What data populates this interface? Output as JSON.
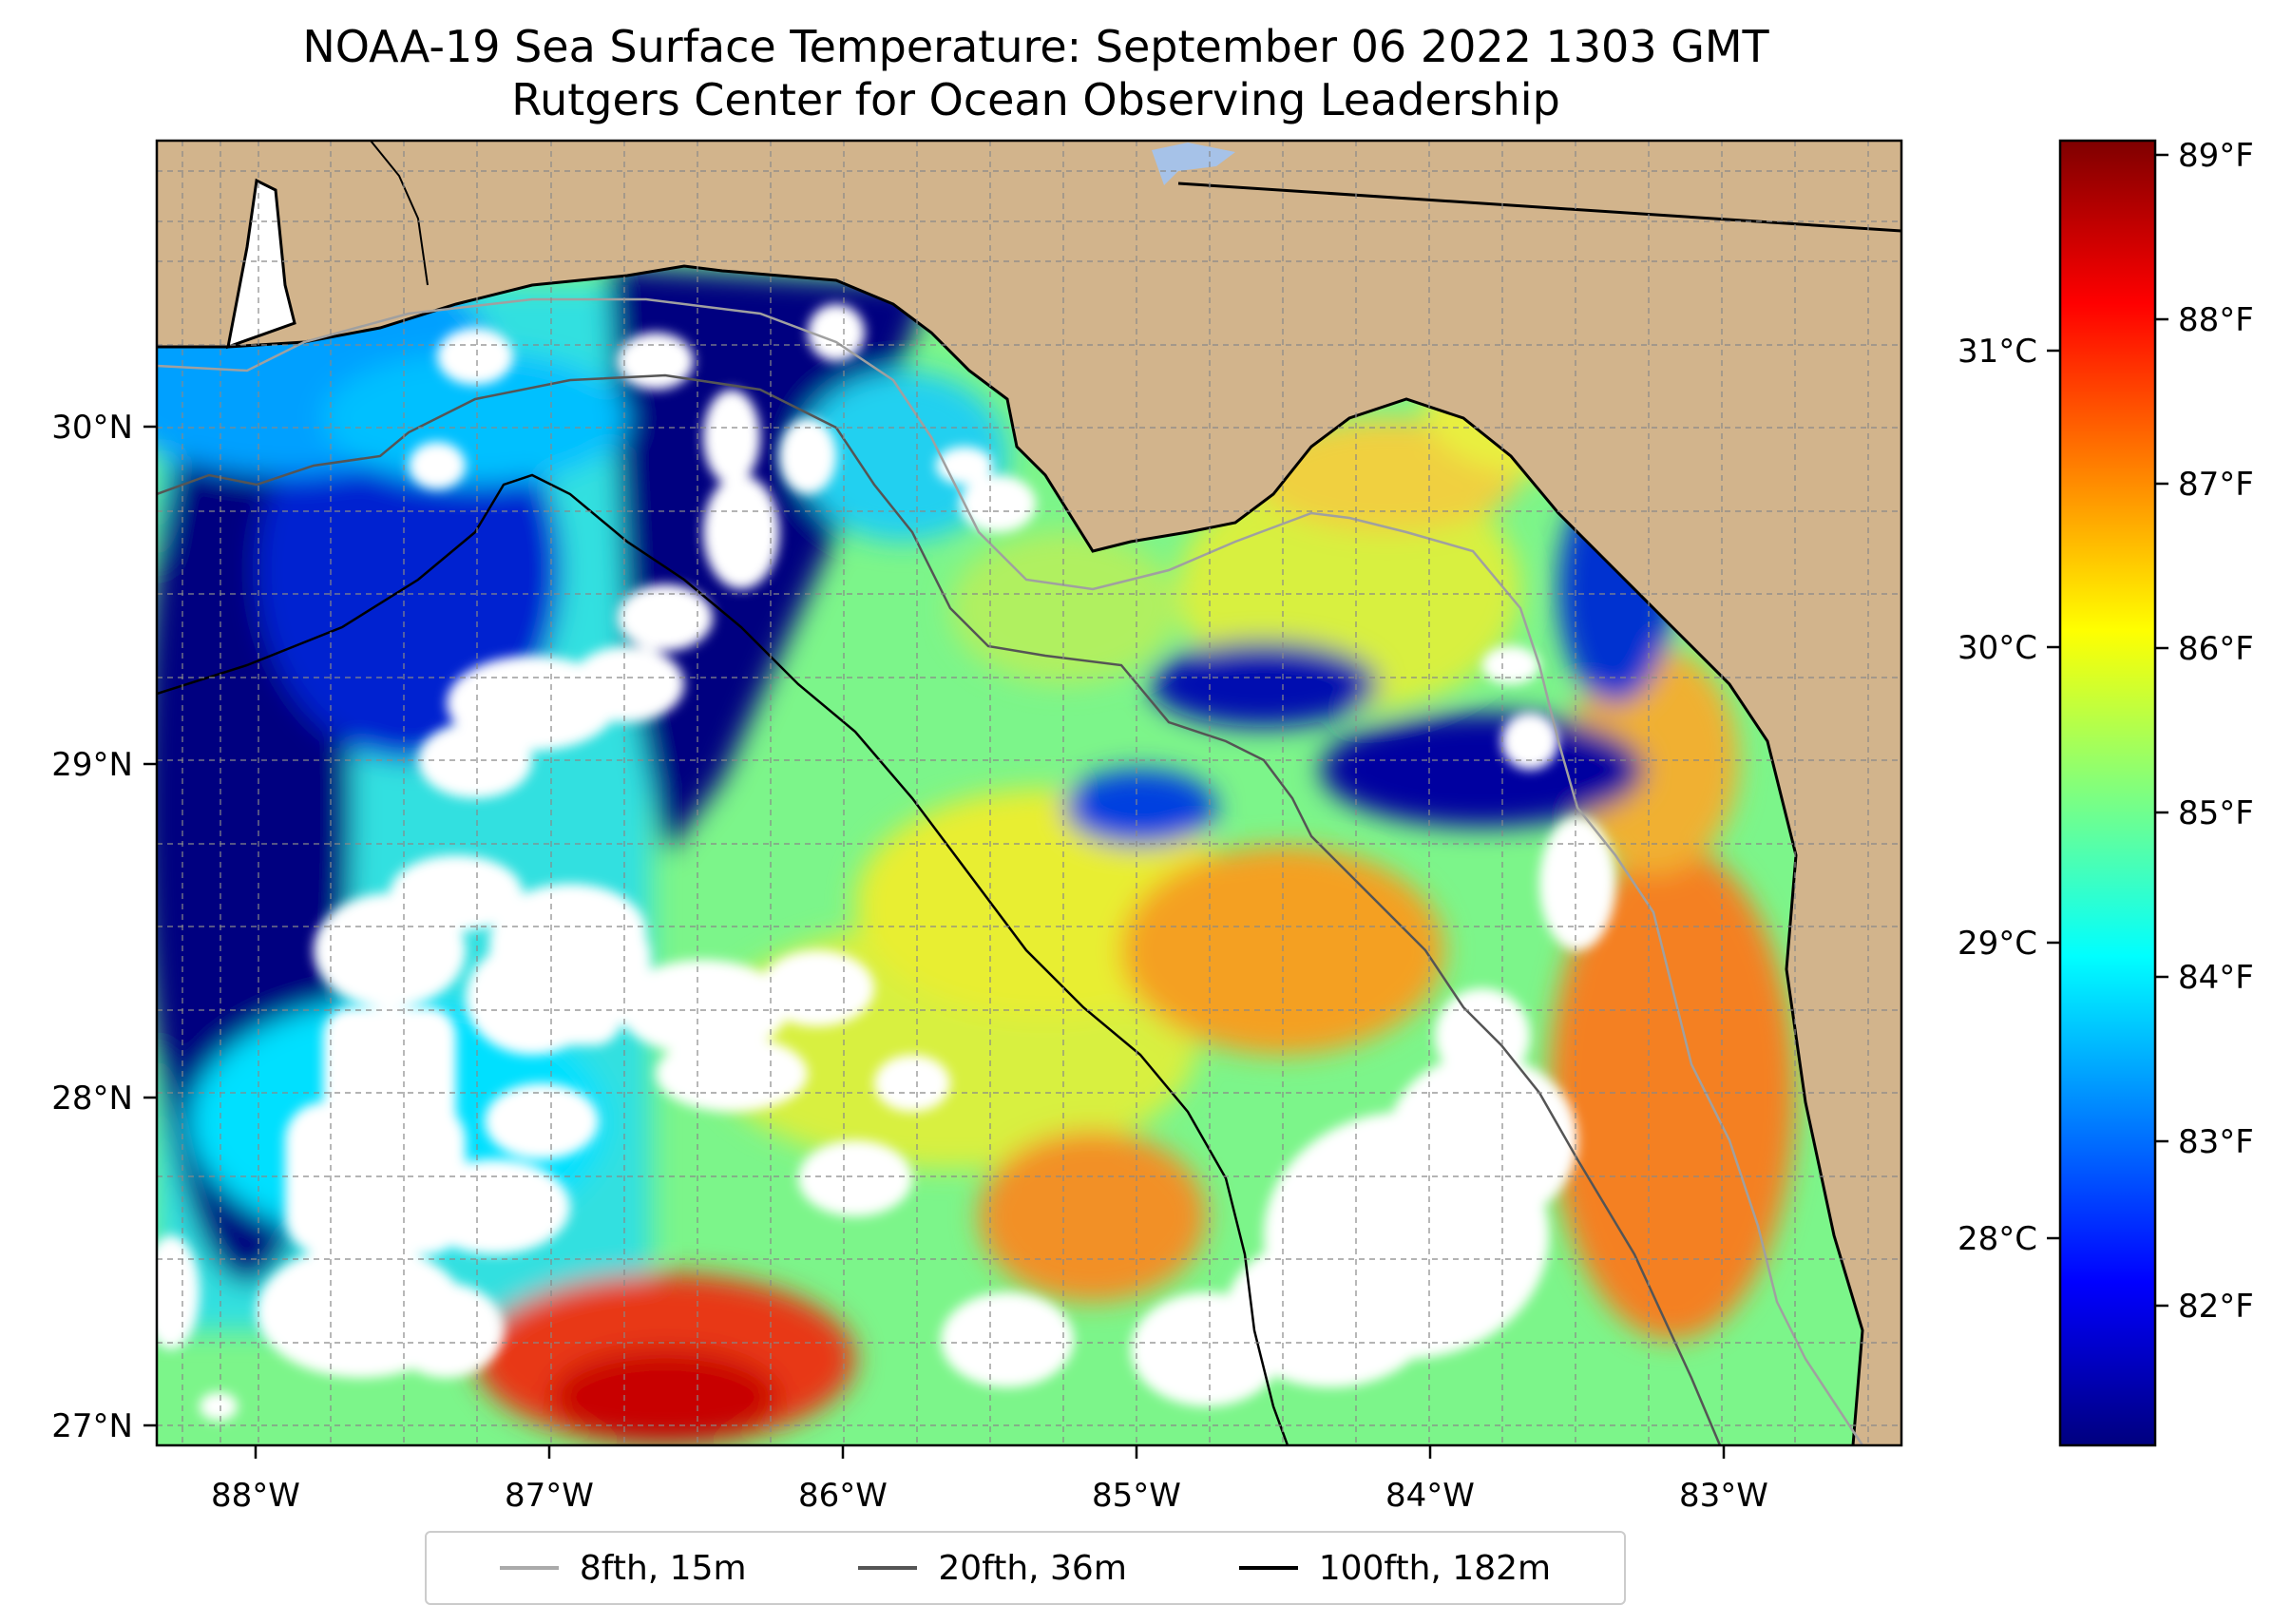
{
  "title": "NOAA-19 Sea Surface Temperature: September 06 2022 1303 GMT",
  "subtitle": "Rutgers Center for Ocean Observing Leadership",
  "lon_ticks": [
    "88°W",
    "87°W",
    "86°W",
    "85°W",
    "84°W",
    "83°W"
  ],
  "lat_ticks": [
    "30°N",
    "29°N",
    "28°N",
    "27°N"
  ],
  "colorbar": {
    "celsius_ticks": [
      "31°C",
      "30°C",
      "29°C",
      "28°C"
    ],
    "fahrenheit_ticks": [
      "89°F",
      "88°F",
      "87°F",
      "86°F",
      "85°F",
      "84°F",
      "83°F",
      "82°F"
    ],
    "colormap": [
      "#00007f",
      "#0000ff",
      "#007fff",
      "#00ffff",
      "#7fff7f",
      "#ffff00",
      "#ff7f00",
      "#ff0000",
      "#7f0000"
    ]
  },
  "legend": [
    {
      "label": "8fth, 15m",
      "color": "#aaaaaa"
    },
    {
      "label": "20fth, 36m",
      "color": "#555555"
    },
    {
      "label": "100fth, 182m",
      "color": "#000000"
    }
  ],
  "colors": {
    "land": "#d2b48c",
    "cloud": "#ffffff",
    "lake": "#a6c2e8"
  }
}
